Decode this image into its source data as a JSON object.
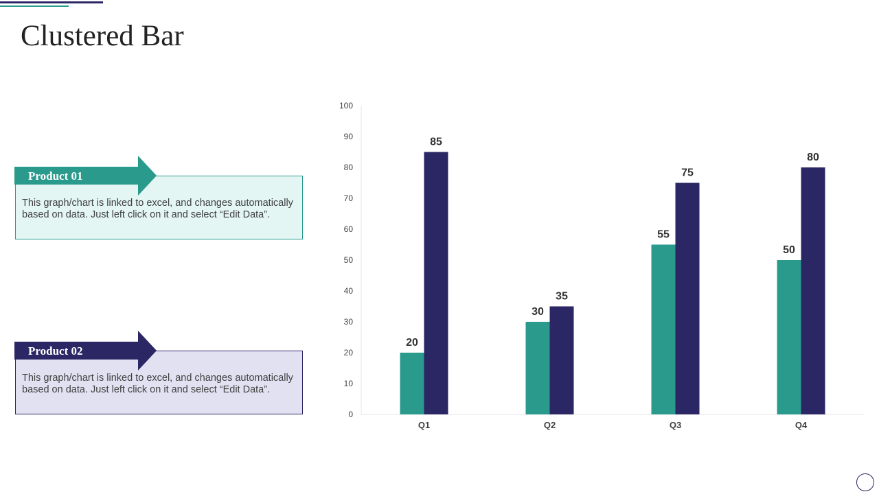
{
  "page": {
    "title": "Clustered Bar"
  },
  "products": [
    {
      "label": "Product 01",
      "text": "This graph/chart is linked to excel, and changes automatically based on data. Just left click on it and select “Edit Data”."
    },
    {
      "label": "Product 02",
      "text": "This graph/chart is linked to excel, and changes automatically based on data. Just left click on it and select “Edit Data”."
    }
  ],
  "colors": {
    "teal": "#2a9a8c",
    "navy": "#2a2764"
  },
  "chart_data": {
    "type": "bar",
    "title": "",
    "xlabel": "",
    "ylabel": "",
    "categories": [
      "Q1",
      "Q2",
      "Q3",
      "Q4"
    ],
    "series": [
      {
        "name": "Product 01",
        "color": "#2a9a8c",
        "values": [
          20,
          30,
          55,
          50
        ]
      },
      {
        "name": "Product 02",
        "color": "#2a2764",
        "values": [
          85,
          35,
          75,
          80
        ]
      }
    ],
    "ylim": [
      0,
      100
    ],
    "yticks": [
      0,
      10,
      20,
      30,
      40,
      50,
      60,
      70,
      80,
      90,
      100
    ],
    "grid": false,
    "legend": "none"
  }
}
